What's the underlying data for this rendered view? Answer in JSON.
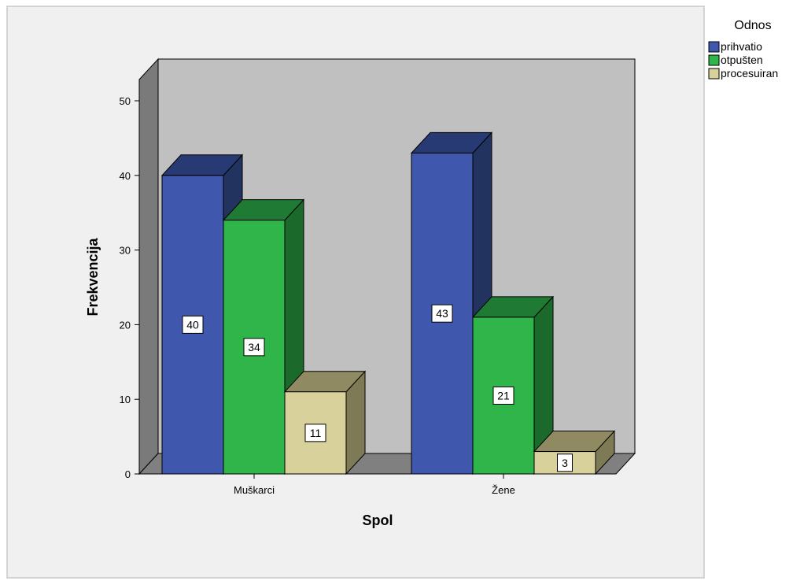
{
  "chart_data": {
    "type": "bar",
    "xlabel": "Spol",
    "ylabel": "Frekvencija",
    "categories": [
      "Muškarci",
      "Žene"
    ],
    "ylim": [
      0,
      54
    ],
    "yticks": [
      "0",
      "10",
      "20",
      "30",
      "40",
      "50"
    ],
    "legend_title": "Odnos",
    "legend_position": "top-right",
    "series": [
      {
        "name": "prihvatio",
        "values": [
          40,
          43
        ],
        "color": "#3f58ad",
        "top_color": "#273a73",
        "side_color": "#22335f"
      },
      {
        "name": "otpušten",
        "values": [
          34,
          21
        ],
        "color": "#2fb54a",
        "top_color": "#1f7a34",
        "side_color": "#1b6a2c"
      },
      {
        "name": "procesuiran",
        "values": [
          11,
          3
        ],
        "color": "#d8d19c",
        "top_color": "#8f8a62",
        "side_color": "#7f7a56"
      }
    ],
    "data_labels": [
      [
        "40",
        "43"
      ],
      [
        "34",
        "21"
      ],
      [
        "11",
        "3"
      ]
    ]
  }
}
